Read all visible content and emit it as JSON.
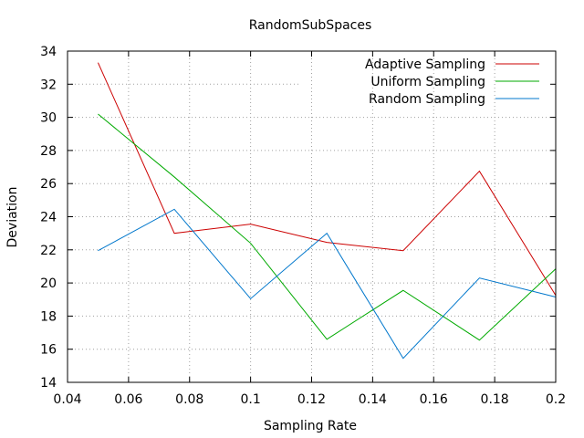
{
  "chart_data": {
    "type": "line",
    "title": "RandomSubSpaces",
    "xlabel": "Sampling Rate",
    "ylabel": "Deviation",
    "xlim": [
      0.04,
      0.2
    ],
    "ylim": [
      14,
      34
    ],
    "xticks": [
      0.04,
      0.06,
      0.08,
      0.1,
      0.12,
      0.14,
      0.16,
      0.18,
      0.2
    ],
    "xtick_labels": [
      "0.04",
      "0.06",
      "0.08",
      "0.1",
      "0.12",
      "0.14",
      "0.16",
      "0.18",
      "0.2"
    ],
    "yticks": [
      14,
      16,
      18,
      20,
      22,
      24,
      26,
      28,
      30,
      32,
      34
    ],
    "ytick_labels": [
      "14",
      "16",
      "18",
      "20",
      "22",
      "24",
      "26",
      "28",
      "30",
      "32",
      "34"
    ],
    "grid": true,
    "legend_position": "top-right",
    "x": [
      0.05,
      0.075,
      0.1,
      0.125,
      0.15,
      0.175,
      0.2
    ],
    "series": [
      {
        "name": "Adaptive Sampling",
        "color": "#cc0000",
        "values": [
          33.3,
          23.0,
          23.55,
          22.45,
          21.95,
          26.75,
          19.25
        ]
      },
      {
        "name": "Uniform Sampling",
        "color": "#00aa00",
        "values": [
          30.2,
          26.4,
          22.4,
          16.6,
          19.55,
          16.55,
          20.85
        ]
      },
      {
        "name": "Random Sampling",
        "color": "#0077cc",
        "values": [
          21.95,
          24.45,
          19.05,
          23.0,
          15.45,
          20.3,
          19.15
        ]
      }
    ]
  }
}
